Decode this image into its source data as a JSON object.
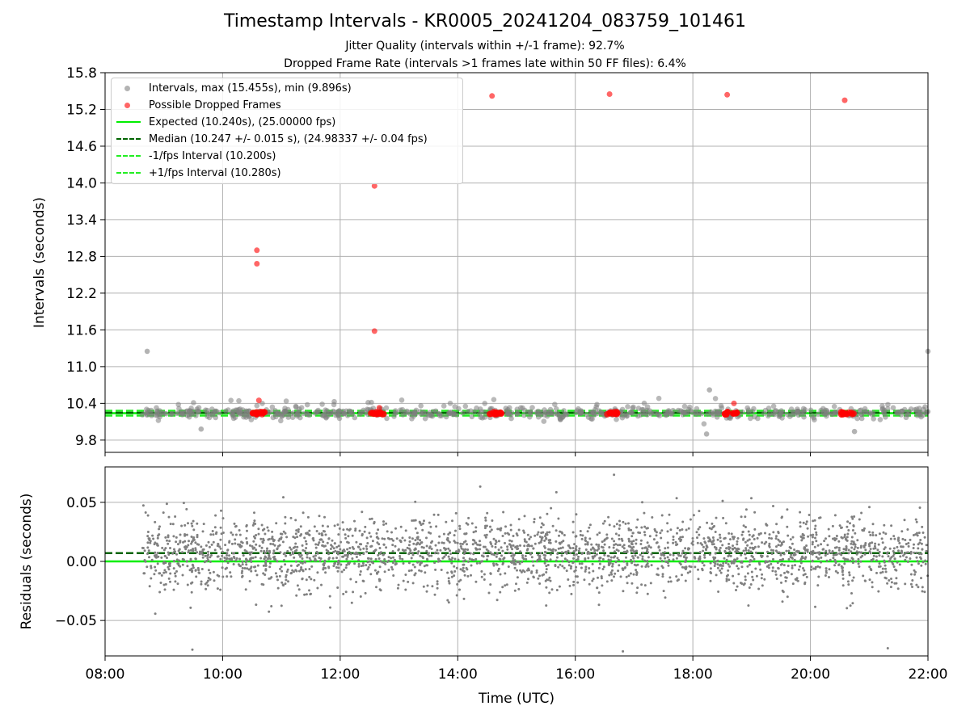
{
  "title": "Timestamp Intervals - KR0005_20241204_083759_101461",
  "subtitle1": "Jitter Quality (intervals within +/-1 frame): 92.7%",
  "subtitle2": "Dropped Frame Rate (intervals >1 frames late within 50 FF files): 6.4%",
  "colors": {
    "intervals": "#808080",
    "dropped": "#ff0000",
    "expected": "#00ee00",
    "median": "#006400",
    "fps_bounds": "#22ee22",
    "grid": "#b0b0b0"
  },
  "chart_data": [
    {
      "type": "scatter",
      "panel": "top",
      "xlabel": "",
      "ylabel": "Intervals (seconds)",
      "ylim": [
        9.6,
        15.8
      ],
      "yticks": [
        "9.8",
        "10.4",
        "11.0",
        "11.6",
        "12.2",
        "12.8",
        "13.4",
        "14.0",
        "14.6",
        "15.2",
        "15.8"
      ],
      "xlim_hours": [
        8.0,
        22.0
      ],
      "grid": true,
      "legend_position": "upper left",
      "legend": [
        {
          "label": "Intervals, max (15.455s), min (9.896s)",
          "marker": "dot",
          "color": "#808080"
        },
        {
          "label": "Possible Dropped Frames",
          "marker": "dot",
          "color": "#ff0000"
        },
        {
          "label": "Expected (10.240s), (25.00000 fps)",
          "marker": "solid",
          "color": "#00ee00"
        },
        {
          "label": "Median (10.247 +/- 0.015 s), (24.98337 +/- 0.04 fps)",
          "marker": "dashed",
          "color": "#006400"
        },
        {
          "label": "-1/fps Interval (10.200s)",
          "marker": "dashed",
          "color": "#22ee22"
        },
        {
          "label": "+1/fps Interval (10.280s)",
          "marker": "dashed",
          "color": "#22ee22"
        }
      ],
      "reference_lines": {
        "expected": 10.24,
        "median": 10.247,
        "minus_one_frame": 10.2,
        "plus_one_frame": 10.28
      },
      "summary": {
        "max": 15.455,
        "min": 9.896,
        "start_time": "08:37:59",
        "end_time": "22:00"
      },
      "dropped_frames": [
        {
          "x": "10:35",
          "y": 12.9
        },
        {
          "x": "10:35",
          "y": 12.68
        },
        {
          "x": "10:37",
          "y": 10.45
        },
        {
          "x": "12:35",
          "y": 13.95
        },
        {
          "x": "12:35",
          "y": 11.58
        },
        {
          "x": "12:40",
          "y": 10.33
        },
        {
          "x": "14:35",
          "y": 15.42
        },
        {
          "x": "16:35",
          "y": 15.45
        },
        {
          "x": "18:35",
          "y": 15.44
        },
        {
          "x": "18:42",
          "y": 10.4
        },
        {
          "x": "20:35",
          "y": 15.35
        }
      ],
      "dropped_clusters": [
        "10:37",
        "12:38",
        "14:38",
        "16:39",
        "18:39",
        "20:38"
      ],
      "outlier_intervals": [
        {
          "x": "08:43",
          "y": 11.25
        },
        {
          "x": "22:00",
          "y": 11.25
        },
        {
          "x": "18:17",
          "y": 10.62
        },
        {
          "x": "18:14",
          "y": 9.9
        },
        {
          "x": "09:38",
          "y": 9.98
        },
        {
          "x": "20:45",
          "y": 9.94
        }
      ]
    },
    {
      "type": "scatter",
      "panel": "bottom",
      "xlabel": "Time (UTC)",
      "ylabel": "Residuals (seconds)",
      "ylim": [
        -0.08,
        0.08
      ],
      "yticks": [
        "−0.05",
        "0.00",
        "0.05"
      ],
      "yticks_values": [
        -0.05,
        0.0,
        0.05
      ],
      "xticks": [
        "08:00",
        "10:00",
        "12:00",
        "14:00",
        "16:00",
        "18:00",
        "20:00",
        "22:00"
      ],
      "xlim_hours": [
        8.0,
        22.0
      ],
      "grid": true,
      "median_residual": 0.007,
      "residual_spread": 0.015,
      "series": [
        {
          "name": "",
          "x_range": [
            "08:37",
            "22:00"
          ],
          "y_typical_range": [
            -0.03,
            0.045
          ]
        }
      ]
    }
  ]
}
